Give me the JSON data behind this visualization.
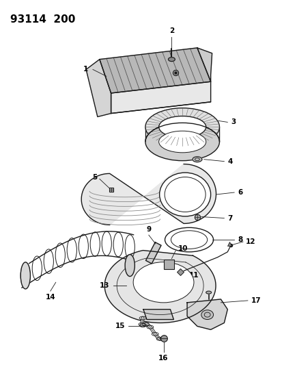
{
  "title": "93114  200",
  "bg_color": "#ffffff",
  "line_color": "#1a1a1a",
  "label_color": "#000000",
  "title_fontsize": 11,
  "label_fontsize": 7.5
}
